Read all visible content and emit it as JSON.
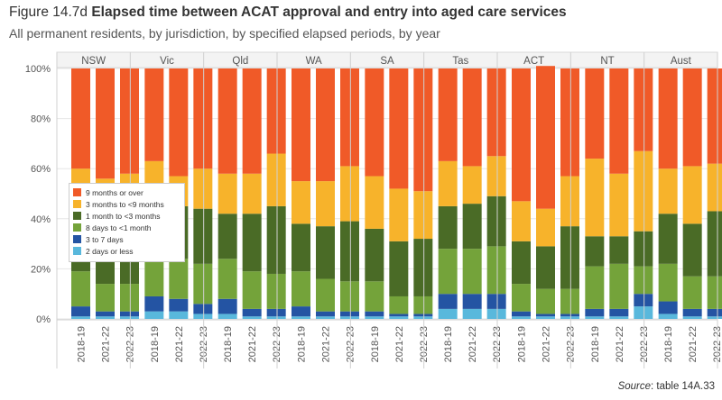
{
  "title": {
    "prefix": "Figure 14.7d",
    "main": "Elapsed time between ACAT approval and entry into aged care services"
  },
  "subtitle": "All permanent residents, by jurisdiction, by specified elapsed periods, by year",
  "source": {
    "label": "Source",
    "text": ": table 14A.33"
  },
  "colors": {
    "9 months or over": "#f05a28",
    "3 months to <9 months": "#f7b32b",
    "1 month to <3 months": "#4a6b26",
    "8 days to <1 month": "#74a33a",
    "3 to 7 days": "#2454a3",
    "2 days or less": "#59b8dc"
  },
  "chart_data": {
    "type": "bar",
    "stacked": true,
    "normalized": true,
    "facets": [
      "NSW",
      "Vic",
      "Qld",
      "WA",
      "SA",
      "Tas",
      "ACT",
      "NT",
      "Aust"
    ],
    "categories": [
      "2018-19",
      "2021-22",
      "2022-23"
    ],
    "yticks": [
      "0%",
      "20%",
      "40%",
      "60%",
      "80%",
      "100%"
    ],
    "ylim": [
      0,
      100
    ],
    "grid": true,
    "legend_position": "left-middle",
    "legend": [
      "9 months or over",
      "3 months to <9 months",
      "1 month to <3 months",
      "8 days to <1 month",
      "3 to 7 days",
      "2 days or less"
    ],
    "series": [
      {
        "name": "2 days or less",
        "values": {
          "NSW": [
            1,
            1,
            1
          ],
          "Vic": [
            3,
            3,
            2
          ],
          "Qld": [
            2,
            1,
            1
          ],
          "WA": [
            1,
            1,
            1
          ],
          "SA": [
            1,
            1,
            1
          ],
          "Tas": [
            4,
            4,
            4
          ],
          "ACT": [
            1,
            1,
            1
          ],
          "NT": [
            1,
            1,
            5
          ],
          "Aust": [
            2,
            1,
            1
          ]
        }
      },
      {
        "name": "3 to 7 days",
        "values": {
          "NSW": [
            4,
            2,
            2
          ],
          "Vic": [
            6,
            5,
            4
          ],
          "Qld": [
            6,
            3,
            3
          ],
          "WA": [
            4,
            2,
            2
          ],
          "SA": [
            2,
            1,
            1
          ],
          "Tas": [
            6,
            6,
            6
          ],
          "ACT": [
            2,
            1,
            1
          ],
          "NT": [
            3,
            3,
            5
          ],
          "Aust": [
            5,
            3,
            3
          ]
        }
      },
      {
        "name": "8 days to <1 month",
        "values": {
          "NSW": [
            14,
            11,
            11
          ],
          "Vic": [
            14,
            16,
            16
          ],
          "Qld": [
            16,
            15,
            14
          ],
          "WA": [
            14,
            13,
            12
          ],
          "SA": [
            12,
            7,
            7
          ],
          "Tas": [
            18,
            18,
            19
          ],
          "ACT": [
            11,
            10,
            10
          ],
          "NT": [
            17,
            18,
            11
          ],
          "Aust": [
            15,
            13,
            13
          ]
        }
      },
      {
        "name": "1 month to <3 months",
        "values": {
          "NSW": [
            24,
            24,
            24
          ],
          "Vic": [
            22,
            21,
            22
          ],
          "Qld": [
            18,
            23,
            27
          ],
          "WA": [
            19,
            21,
            24
          ],
          "SA": [
            21,
            22,
            23
          ],
          "Tas": [
            17,
            18,
            20
          ],
          "ACT": [
            17,
            17,
            25
          ],
          "NT": [
            12,
            11,
            14
          ],
          "Aust": [
            20,
            21,
            26
          ]
        }
      },
      {
        "name": "3 months to <9 months",
        "values": {
          "NSW": [
            17,
            18,
            20
          ],
          "Vic": [
            18,
            12,
            16
          ],
          "Qld": [
            16,
            16,
            21
          ],
          "WA": [
            17,
            18,
            22
          ],
          "SA": [
            21,
            21,
            19
          ],
          "Tas": [
            18,
            15,
            16
          ],
          "ACT": [
            16,
            15,
            20
          ],
          "NT": [
            31,
            25,
            32
          ],
          "Aust": [
            18,
            23,
            19
          ]
        }
      },
      {
        "name": "9 months or over",
        "values": {
          "NSW": [
            40,
            44,
            42
          ],
          "Vic": [
            37,
            43,
            40
          ],
          "Qld": [
            42,
            42,
            34
          ],
          "WA": [
            45,
            45,
            39
          ],
          "SA": [
            43,
            48,
            49
          ],
          "Tas": [
            37,
            39,
            35
          ],
          "ACT": [
            53,
            57,
            43
          ],
          "NT": [
            36,
            42,
            33
          ],
          "Aust": [
            40,
            39,
            38
          ]
        }
      }
    ]
  }
}
